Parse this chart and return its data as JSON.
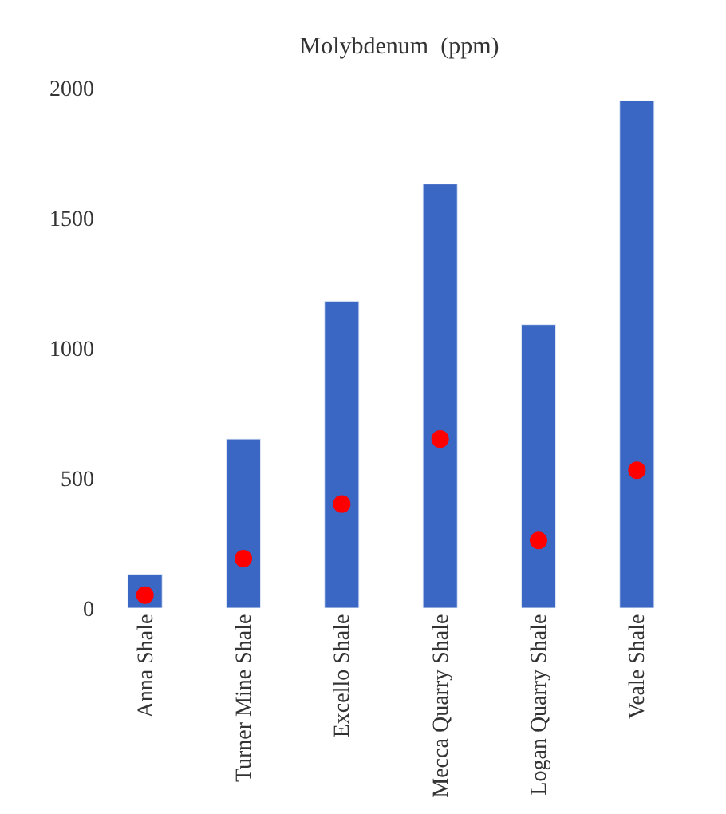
{
  "chart_data": {
    "type": "bar",
    "title": "Molybdenum  (ppm)",
    "categories": [
      "Anna Shale",
      "Turner Mine Shale",
      "Excello Shale",
      "Mecca Quarry Shale",
      "Logan Quarry Shale",
      "Veale Shale"
    ],
    "series": [
      {
        "color": "#3a66c4",
        "values": [
          130,
          650,
          1180,
          1630,
          1090,
          1950
        ]
      },
      {
        "type": "scatter",
        "color": "#ff0000",
        "x": [
          "Anna Shale",
          "Turner Mine Shale",
          "Excello Shale",
          "Mecca Quarry Shale",
          "Logan Quarry Shale",
          "Veale Shale"
        ],
        "values": [
          50,
          190,
          400,
          650,
          260,
          530
        ]
      }
    ],
    "ylim": [
      0,
      2000
    ],
    "yticks": [
      0,
      500,
      1000,
      1500,
      2000
    ],
    "grid": false,
    "marker": "circle"
  }
}
